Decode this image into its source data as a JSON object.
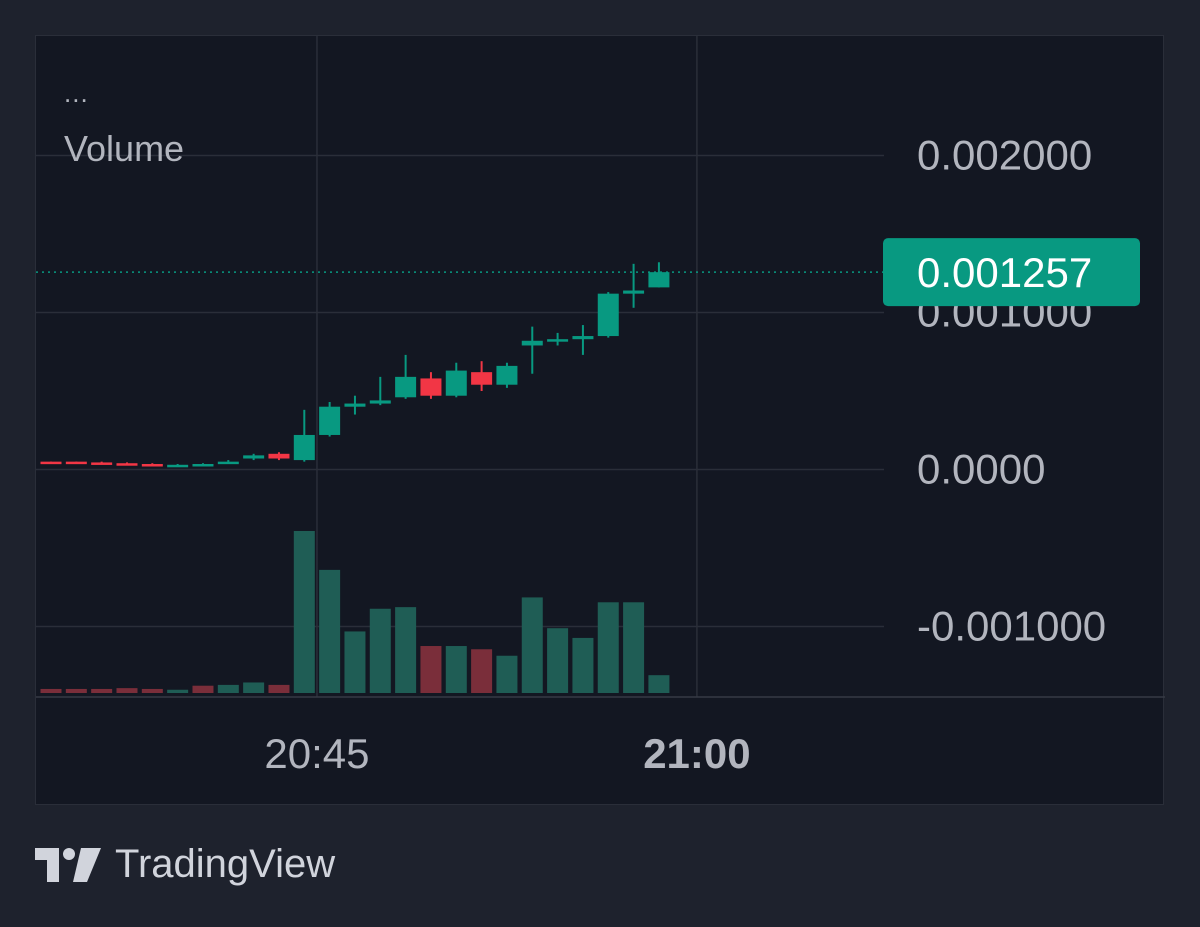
{
  "legend": {
    "dots": "...",
    "indicator_label": "Volume"
  },
  "brand": {
    "name": "TradingView",
    "logo_icon": "tradingview-logo-icon"
  },
  "colors": {
    "background": "#1e222d",
    "pane": "#131722",
    "grid": "#2a2e39",
    "up": "#089981",
    "down": "#f23645",
    "vol_up": "#1f5d55",
    "vol_down": "#7a2e3a",
    "axis_text": "#b2b5be"
  },
  "chart_data": {
    "type": "candlestick",
    "y_axis": {
      "ticks": [
        {
          "value": 0.002,
          "label": "0.002000"
        },
        {
          "value": 0.001,
          "label": "0.001000"
        },
        {
          "value": 0.0,
          "label": "0.0000"
        },
        {
          "value": -0.001,
          "label": "-0.001000"
        }
      ],
      "range": [
        -0.00145,
        0.00242
      ]
    },
    "x_axis": {
      "ticks": [
        {
          "index": 10.5,
          "label": "20:45",
          "bold": false
        },
        {
          "index": 25.5,
          "label": "21:00",
          "bold": true
        }
      ]
    },
    "last_price": {
      "value": 0.001257,
      "label": "0.001257"
    },
    "candles": [
      {
        "o": 5e-05,
        "h": 5e-05,
        "l": 4e-05,
        "c": 4.5e-05
      },
      {
        "o": 5e-05,
        "h": 5e-05,
        "l": 4e-05,
        "c": 4.5e-05
      },
      {
        "o": 4.5e-05,
        "h": 5e-05,
        "l": 4e-05,
        "c": 4e-05
      },
      {
        "o": 4e-05,
        "h": 4.5e-05,
        "l": 3e-05,
        "c": 3.5e-05
      },
      {
        "o": 3.5e-05,
        "h": 4e-05,
        "l": 3e-05,
        "c": 3e-05
      },
      {
        "o": 3e-05,
        "h": 3.5e-05,
        "l": 2.5e-05,
        "c": 3e-05
      },
      {
        "o": 3e-05,
        "h": 4e-05,
        "l": 2.5e-05,
        "c": 3.5e-05
      },
      {
        "o": 4e-05,
        "h": 6e-05,
        "l": 3.5e-05,
        "c": 5e-05
      },
      {
        "o": 7e-05,
        "h": 0.0001,
        "l": 6e-05,
        "c": 9e-05
      },
      {
        "o": 0.0001,
        "h": 0.00011,
        "l": 6e-05,
        "c": 7e-05
      },
      {
        "o": 6e-05,
        "h": 0.00038,
        "l": 5e-05,
        "c": 0.00022
      },
      {
        "o": 0.00022,
        "h": 0.00043,
        "l": 0.00021,
        "c": 0.0004
      },
      {
        "o": 0.0004,
        "h": 0.00047,
        "l": 0.00035,
        "c": 0.00042
      },
      {
        "o": 0.00042,
        "h": 0.00059,
        "l": 0.00041,
        "c": 0.00044
      },
      {
        "o": 0.00046,
        "h": 0.00073,
        "l": 0.00045,
        "c": 0.00059
      },
      {
        "o": 0.00058,
        "h": 0.00062,
        "l": 0.00045,
        "c": 0.00047
      },
      {
        "o": 0.00047,
        "h": 0.00068,
        "l": 0.00046,
        "c": 0.00063
      },
      {
        "o": 0.00062,
        "h": 0.00069,
        "l": 0.0005,
        "c": 0.00054
      },
      {
        "o": 0.00054,
        "h": 0.00068,
        "l": 0.00052,
        "c": 0.00066
      },
      {
        "o": 0.00079,
        "h": 0.00091,
        "l": 0.00061,
        "c": 0.00082
      },
      {
        "o": 0.00082,
        "h": 0.00087,
        "l": 0.00079,
        "c": 0.00083
      },
      {
        "o": 0.00083,
        "h": 0.00092,
        "l": 0.00073,
        "c": 0.00085
      },
      {
        "o": 0.00085,
        "h": 0.00113,
        "l": 0.00084,
        "c": 0.00112
      },
      {
        "o": 0.00112,
        "h": 0.00131,
        "l": 0.00103,
        "c": 0.00114
      },
      {
        "o": 0.00116,
        "h": 0.00132,
        "l": 0.00116,
        "c": 0.001257
      }
    ],
    "volume": [
      {
        "v": 0.025,
        "dir": "down"
      },
      {
        "v": 0.025,
        "dir": "down"
      },
      {
        "v": 0.025,
        "dir": "down"
      },
      {
        "v": 0.03,
        "dir": "down"
      },
      {
        "v": 0.025,
        "dir": "down"
      },
      {
        "v": 0.02,
        "dir": "up"
      },
      {
        "v": 0.045,
        "dir": "down"
      },
      {
        "v": 0.05,
        "dir": "up"
      },
      {
        "v": 0.065,
        "dir": "up"
      },
      {
        "v": 0.05,
        "dir": "down"
      },
      {
        "v": 1.0,
        "dir": "up"
      },
      {
        "v": 0.76,
        "dir": "up"
      },
      {
        "v": 0.38,
        "dir": "up"
      },
      {
        "v": 0.52,
        "dir": "up"
      },
      {
        "v": 0.53,
        "dir": "up"
      },
      {
        "v": 0.29,
        "dir": "down"
      },
      {
        "v": 0.29,
        "dir": "up"
      },
      {
        "v": 0.27,
        "dir": "down"
      },
      {
        "v": 0.23,
        "dir": "up"
      },
      {
        "v": 0.59,
        "dir": "up"
      },
      {
        "v": 0.4,
        "dir": "up"
      },
      {
        "v": 0.34,
        "dir": "up"
      },
      {
        "v": 0.56,
        "dir": "up"
      },
      {
        "v": 0.56,
        "dir": "up"
      },
      {
        "v": 0.11,
        "dir": "up"
      }
    ]
  }
}
